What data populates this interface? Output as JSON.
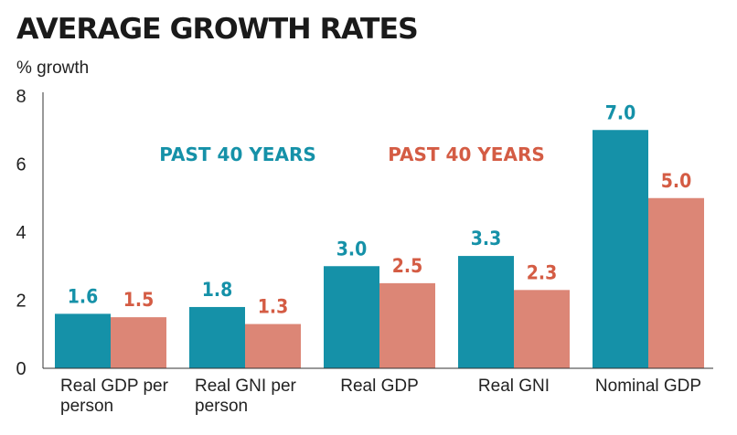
{
  "chart_data": {
    "type": "bar",
    "title": "AVERAGE GROWTH RATES",
    "ylabel": "% growth",
    "xlabel": "",
    "ylim": [
      0,
      8
    ],
    "yticks": [
      "0",
      "2",
      "4",
      "6",
      "8"
    ],
    "categories": [
      [
        "Real GDP per",
        "person"
      ],
      [
        "Real GNI per",
        "person"
      ],
      [
        "Real GDP"
      ],
      [
        "Real GNI"
      ],
      [
        "Nominal GDP"
      ]
    ],
    "series": [
      {
        "name": "PAST 40 YEARS",
        "color": "#1591a8",
        "values": [
          1.6,
          1.8,
          3.0,
          3.3,
          7.0
        ],
        "labels": [
          "1.6",
          "1.8",
          "3.0",
          "3.3",
          "7.0"
        ]
      },
      {
        "name": "PAST 40 YEARS",
        "color": "#dc8676",
        "values": [
          1.5,
          1.3,
          2.5,
          2.3,
          5.0
        ],
        "labels": [
          "1.5",
          "1.3",
          "2.5",
          "2.3",
          "5.0"
        ]
      }
    ],
    "label_colors": [
      "#1591a8",
      "#d45c44"
    ]
  }
}
